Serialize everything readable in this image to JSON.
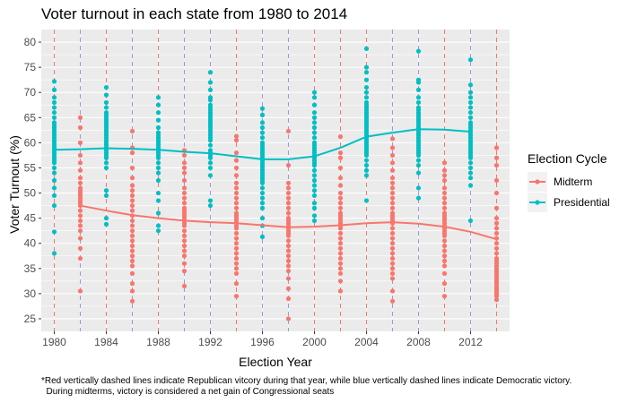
{
  "chart_data": {
    "type": "scatter",
    "title": "Voter turnout in each state from 1980 to 2014",
    "xlabel": "Election Year",
    "ylabel": "Voter Turnout (%)",
    "xlim": [
      1979,
      2015
    ],
    "ylim": [
      22.5,
      82.5
    ],
    "x_ticks": [
      1980,
      1984,
      1988,
      1992,
      1996,
      2000,
      2004,
      2008,
      2012
    ],
    "x_tick_labels": [
      "1980",
      "1984",
      "1988",
      "1992",
      "1996",
      "2000",
      "2004",
      "2008",
      "2012"
    ],
    "y_ticks": [
      25,
      30,
      35,
      40,
      45,
      50,
      55,
      60,
      65,
      70,
      75,
      80
    ],
    "y_tick_labels": [
      "25",
      "30",
      "35",
      "40",
      "45",
      "50",
      "55",
      "60",
      "65",
      "70",
      "75",
      "80"
    ],
    "grid": true,
    "legend": {
      "title": "Election Cycle",
      "position": "right",
      "entries": [
        "Midterm",
        "Presidential"
      ]
    },
    "colors": {
      "midterm": "#F8766D",
      "presidential": "#00BFC4",
      "republican_line": "#F8766D",
      "democratic_line": "#9999DD",
      "panel": "#EBEBEB",
      "grid": "#FFFFFF"
    },
    "victory_lines": [
      {
        "year": 1980,
        "party": "R"
      },
      {
        "year": 1982,
        "party": "D"
      },
      {
        "year": 1984,
        "party": "R"
      },
      {
        "year": 1986,
        "party": "D"
      },
      {
        "year": 1988,
        "party": "R"
      },
      {
        "year": 1990,
        "party": "D"
      },
      {
        "year": 1992,
        "party": "D"
      },
      {
        "year": 1994,
        "party": "R"
      },
      {
        "year": 1996,
        "party": "D"
      },
      {
        "year": 1998,
        "party": "D"
      },
      {
        "year": 2000,
        "party": "R"
      },
      {
        "year": 2002,
        "party": "R"
      },
      {
        "year": 2004,
        "party": "R"
      },
      {
        "year": 2006,
        "party": "D"
      },
      {
        "year": 2008,
        "party": "D"
      },
      {
        "year": 2010,
        "party": "R"
      },
      {
        "year": 2012,
        "party": "D"
      },
      {
        "year": 2014,
        "party": "R"
      }
    ],
    "series": [
      {
        "name": "Presidential",
        "points": [
          {
            "x": 1980,
            "y": [
              38.0,
              42.3,
              47.5,
              49.5,
              51.0,
              52.5,
              54.0,
              55.0,
              56.0,
              56.5,
              57.0,
              57.5,
              58.0,
              58.5,
              59.0,
              59.5,
              60.0,
              60.5,
              61.0,
              61.5,
              62.0,
              62.5,
              63.0,
              63.5,
              64.0,
              65.0,
              66.0,
              67.0,
              68.0,
              69.0,
              70.5,
              72.2
            ]
          },
          {
            "x": 1984,
            "y": [
              43.8,
              45.0,
              49.5,
              50.5,
              55.0,
              56.0,
              57.0,
              57.5,
              58.0,
              58.5,
              59.0,
              59.5,
              60.0,
              60.5,
              61.0,
              61.5,
              62.0,
              62.5,
              63.0,
              63.5,
              64.0,
              64.5,
              65.0,
              65.5,
              66.0,
              67.0,
              68.0,
              69.5,
              71.0
            ]
          },
          {
            "x": 1988,
            "y": [
              42.5,
              43.5,
              46.0,
              48.5,
              50.0,
              52.5,
              54.0,
              55.0,
              56.0,
              57.0,
              57.5,
              58.0,
              58.5,
              59.0,
              59.5,
              60.0,
              60.5,
              61.0,
              61.5,
              62.0,
              63.0,
              64.5,
              66.0,
              67.5,
              69.0
            ]
          },
          {
            "x": 1992,
            "y": [
              47.5,
              48.5,
              53.5,
              55.0,
              56.0,
              57.0,
              57.5,
              58.0,
              58.5,
              59.5,
              60.5,
              61.0,
              61.5,
              62.0,
              62.5,
              63.0,
              63.5,
              64.0,
              64.5,
              65.0,
              65.5,
              66.0,
              66.5,
              67.0,
              67.5,
              68.5,
              69.0,
              70.5,
              72.0,
              74.0
            ]
          },
          {
            "x": 1996,
            "y": [
              41.3,
              43.5,
              45.0,
              47.0,
              48.0,
              49.0,
              50.0,
              51.0,
              52.0,
              52.5,
              53.0,
              53.5,
              54.0,
              54.5,
              55.0,
              55.5,
              56.0,
              56.5,
              57.0,
              57.5,
              58.0,
              58.5,
              59.0,
              59.5,
              60.0,
              61.0,
              62.0,
              63.0,
              64.0,
              65.5,
              66.8
            ]
          },
          {
            "x": 2000,
            "y": [
              44.5,
              45.5,
              47.0,
              48.0,
              49.5,
              50.5,
              51.5,
              52.5,
              53.5,
              54.5,
              55.5,
              56.0,
              56.5,
              57.0,
              57.5,
              58.0,
              58.5,
              59.0,
              59.5,
              60.0,
              61.0,
              62.0,
              63.0,
              64.0,
              65.0,
              66.0,
              67.5,
              69.0,
              70.0
            ]
          },
          {
            "x": 2004,
            "y": [
              48.5,
              53.5,
              54.5,
              55.5,
              56.5,
              57.5,
              58.0,
              58.5,
              59.0,
              59.5,
              60.0,
              60.5,
              61.0,
              61.5,
              62.0,
              62.5,
              63.0,
              63.5,
              64.0,
              64.5,
              65.0,
              65.5,
              66.0,
              66.5,
              67.0,
              67.5,
              68.0,
              69.0,
              70.0,
              71.0,
              72.5,
              74.0,
              75.0,
              78.7
            ]
          },
          {
            "x": 2008,
            "y": [
              49.0,
              51.0,
              54.0,
              55.5,
              56.5,
              57.5,
              58.0,
              58.5,
              59.0,
              59.5,
              60.0,
              60.5,
              61.0,
              61.5,
              62.0,
              62.5,
              63.0,
              63.5,
              64.0,
              64.5,
              65.0,
              65.5,
              66.0,
              66.5,
              67.0,
              68.0,
              69.0,
              70.5,
              72.0,
              72.5,
              78.2
            ]
          },
          {
            "x": 2012,
            "y": [
              44.5,
              51.5,
              53.0,
              54.0,
              55.0,
              56.0,
              57.0,
              57.5,
              58.0,
              58.5,
              59.0,
              59.5,
              60.0,
              60.5,
              61.0,
              61.5,
              62.0,
              62.5,
              63.0,
              63.5,
              64.0,
              65.0,
              66.0,
              67.0,
              68.0,
              69.0,
              70.0,
              71.5,
              76.5
            ]
          }
        ],
        "trend": [
          {
            "x": 1980,
            "y": 58.6
          },
          {
            "x": 1982,
            "y": 58.7
          },
          {
            "x": 1984,
            "y": 58.9
          },
          {
            "x": 1986,
            "y": 58.8
          },
          {
            "x": 1988,
            "y": 58.6
          },
          {
            "x": 1990,
            "y": 58.2
          },
          {
            "x": 1992,
            "y": 57.9
          },
          {
            "x": 1994,
            "y": 57.3
          },
          {
            "x": 1996,
            "y": 56.7
          },
          {
            "x": 1998,
            "y": 56.7
          },
          {
            "x": 2000,
            "y": 57.3
          },
          {
            "x": 2002,
            "y": 59.0
          },
          {
            "x": 2004,
            "y": 61.2
          },
          {
            "x": 2006,
            "y": 62.0
          },
          {
            "x": 2008,
            "y": 62.7
          },
          {
            "x": 2010,
            "y": 62.6
          },
          {
            "x": 2012,
            "y": 62.2
          }
        ]
      },
      {
        "name": "Midterm",
        "points": [
          {
            "x": 1982,
            "y": [
              30.5,
              37.0,
              39.0,
              41.0,
              42.5,
              43.5,
              44.5,
              45.5,
              46.5,
              47.5,
              48.0,
              48.5,
              49.0,
              49.5,
              50.0,
              50.5,
              51.0,
              52.0,
              53.0,
              54.5,
              56.0,
              57.5,
              60.0,
              63.0,
              65.0
            ]
          },
          {
            "x": 1986,
            "y": [
              28.5,
              30.5,
              32.0,
              34.0,
              35.5,
              36.5,
              37.5,
              38.5,
              39.5,
              40.5,
              41.5,
              42.5,
              43.5,
              44.5,
              45.5,
              46.5,
              47.5,
              48.5,
              49.5,
              50.5,
              51.5,
              53.0,
              55.0,
              58.0,
              59.0,
              62.3
            ]
          },
          {
            "x": 1990,
            "y": [
              31.5,
              34.5,
              36.0,
              37.5,
              38.5,
              39.5,
              40.5,
              41.5,
              42.5,
              43.5,
              44.0,
              44.5,
              45.0,
              45.5,
              46.0,
              46.5,
              47.0,
              48.0,
              49.0,
              50.0,
              51.0,
              52.5,
              54.0,
              55.0,
              56.0,
              57.5,
              58.5
            ]
          },
          {
            "x": 1994,
            "y": [
              29.5,
              32.0,
              34.0,
              35.0,
              36.0,
              37.0,
              38.0,
              39.0,
              40.0,
              41.0,
              42.0,
              43.0,
              43.5,
              44.0,
              44.5,
              45.0,
              45.5,
              46.0,
              47.0,
              48.0,
              49.0,
              50.0,
              51.0,
              52.0,
              53.5,
              55.0,
              56.5,
              58.0,
              60.5,
              61.3
            ]
          },
          {
            "x": 1998,
            "y": [
              25.0,
              29.0,
              31.0,
              33.0,
              34.5,
              35.5,
              36.5,
              37.5,
              38.5,
              39.5,
              40.5,
              41.5,
              42.0,
              42.5,
              43.0,
              43.5,
              44.0,
              44.5,
              45.0,
              46.0,
              47.0,
              48.0,
              49.0,
              50.0,
              51.0,
              52.0,
              55.5,
              62.3
            ]
          },
          {
            "x": 2002,
            "y": [
              30.5,
              32.5,
              34.0,
              35.0,
              36.0,
              37.0,
              38.0,
              39.0,
              40.0,
              41.0,
              42.0,
              43.0,
              43.5,
              44.0,
              44.5,
              45.0,
              45.5,
              46.0,
              47.0,
              48.0,
              49.0,
              50.0,
              51.5,
              53.0,
              55.0,
              57.0,
              58.0,
              61.2
            ]
          },
          {
            "x": 2006,
            "y": [
              28.5,
              30.5,
              33.0,
              34.0,
              35.0,
              36.0,
              37.0,
              38.0,
              39.0,
              40.0,
              41.0,
              42.0,
              43.0,
              44.0,
              44.5,
              45.0,
              45.5,
              46.0,
              47.0,
              48.0,
              49.0,
              50.0,
              51.0,
              52.0,
              53.0,
              54.5,
              56.0,
              57.5,
              59.0,
              60.8
            ]
          },
          {
            "x": 2010,
            "y": [
              29.5,
              32.0,
              34.0,
              35.5,
              36.5,
              37.5,
              38.5,
              39.5,
              40.5,
              41.5,
              42.0,
              42.5,
              43.0,
              43.5,
              44.0,
              44.5,
              45.0,
              45.5,
              46.0,
              47.0,
              48.0,
              49.0,
              50.0,
              51.0,
              52.5,
              53.5,
              54.5,
              56.0
            ]
          },
          {
            "x": 2014,
            "y": [
              28.8,
              29.5,
              30.0,
              30.5,
              31.0,
              31.5,
              32.0,
              32.5,
              33.0,
              33.5,
              34.0,
              34.5,
              35.0,
              35.5,
              36.0,
              36.5,
              37.0,
              38.0,
              39.0,
              40.0,
              41.0,
              42.0,
              43.0,
              44.0,
              45.0,
              47.0,
              50.0,
              52.5,
              55.5,
              57.0,
              59.0
            ]
          }
        ],
        "trend": [
          {
            "x": 1982,
            "y": 47.5
          },
          {
            "x": 1984,
            "y": 46.5
          },
          {
            "x": 1986,
            "y": 45.6
          },
          {
            "x": 1988,
            "y": 45.0
          },
          {
            "x": 1990,
            "y": 44.5
          },
          {
            "x": 1992,
            "y": 44.2
          },
          {
            "x": 1994,
            "y": 44.0
          },
          {
            "x": 1996,
            "y": 43.6
          },
          {
            "x": 1998,
            "y": 43.2
          },
          {
            "x": 2000,
            "y": 43.3
          },
          {
            "x": 2002,
            "y": 43.6
          },
          {
            "x": 2004,
            "y": 44.0
          },
          {
            "x": 2006,
            "y": 44.2
          },
          {
            "x": 2008,
            "y": 43.9
          },
          {
            "x": 2010,
            "y": 43.3
          },
          {
            "x": 2012,
            "y": 42.3
          },
          {
            "x": 2014,
            "y": 40.8
          }
        ]
      }
    ],
    "footnote": [
      "*Red vertically dashed lines indicate Republican vitcory during that year, while blue vertically dashed lines indicate Democratic victory.",
      "  During midterms, victory is considered a net gain of Congressional seats"
    ]
  }
}
